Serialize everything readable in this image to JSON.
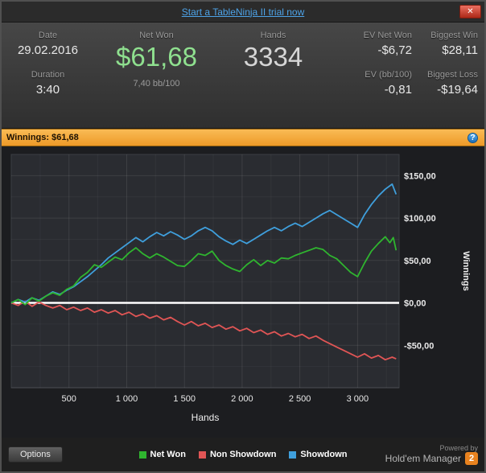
{
  "top_bar": {
    "link": "Start a TableNinja II trial now",
    "close_glyph": "✕"
  },
  "stats": {
    "date": {
      "label": "Date",
      "value": "29.02.2016"
    },
    "duration": {
      "label": "Duration",
      "value": "3:40"
    },
    "net_won": {
      "label": "Net Won",
      "value": "$61,68",
      "sub": "7,40 bb/100"
    },
    "hands": {
      "label": "Hands",
      "value": "3334"
    },
    "ev_net_won": {
      "label": "EV Net Won",
      "value": "-$6,72"
    },
    "ev_bb": {
      "label": "EV (bb/100)",
      "value": "-0,81"
    },
    "biggest_win": {
      "label": "Biggest Win",
      "value": "$28,11"
    },
    "biggest_loss": {
      "label": "Biggest Loss",
      "value": "-$19,64"
    }
  },
  "winnings_bar": {
    "label": "Winnings: $61,68",
    "help_glyph": "?"
  },
  "chart_data": {
    "type": "line",
    "xlabel": "Hands",
    "ylabel": "Winnings",
    "xlim": [
      0,
      3360
    ],
    "ylim": [
      -100,
      175
    ],
    "x_grid_step": 250,
    "y_grid_step": 25,
    "zero_line": 0,
    "x_ticks": [
      {
        "v": 500,
        "label": "500"
      },
      {
        "v": 1000,
        "label": "1 000"
      },
      {
        "v": 1500,
        "label": "1 500"
      },
      {
        "v": 2000,
        "label": "2 000"
      },
      {
        "v": 2500,
        "label": "2 500"
      },
      {
        "v": 3000,
        "label": "3 000"
      }
    ],
    "y_ticks": [
      {
        "v": 150,
        "label": "$150,00"
      },
      {
        "v": 100,
        "label": "$100,00"
      },
      {
        "v": 50,
        "label": "$50,00"
      },
      {
        "v": 0,
        "label": "$0,00"
      },
      {
        "v": -50,
        "label": "-$50,00"
      }
    ],
    "series": [
      {
        "name": "Non Showdown",
        "color": "#e05555",
        "points": [
          [
            0,
            0
          ],
          [
            60,
            -3
          ],
          [
            120,
            2
          ],
          [
            180,
            -4
          ],
          [
            240,
            1
          ],
          [
            300,
            -3
          ],
          [
            360,
            -6
          ],
          [
            420,
            -3
          ],
          [
            480,
            -8
          ],
          [
            540,
            -5
          ],
          [
            600,
            -9
          ],
          [
            660,
            -6
          ],
          [
            720,
            -11
          ],
          [
            780,
            -8
          ],
          [
            840,
            -12
          ],
          [
            900,
            -9
          ],
          [
            960,
            -14
          ],
          [
            1020,
            -11
          ],
          [
            1080,
            -16
          ],
          [
            1140,
            -13
          ],
          [
            1200,
            -18
          ],
          [
            1260,
            -15
          ],
          [
            1320,
            -20
          ],
          [
            1380,
            -17
          ],
          [
            1440,
            -22
          ],
          [
            1500,
            -26
          ],
          [
            1560,
            -22
          ],
          [
            1620,
            -27
          ],
          [
            1680,
            -24
          ],
          [
            1740,
            -29
          ],
          [
            1800,
            -26
          ],
          [
            1860,
            -31
          ],
          [
            1920,
            -28
          ],
          [
            1980,
            -33
          ],
          [
            2040,
            -30
          ],
          [
            2100,
            -35
          ],
          [
            2160,
            -32
          ],
          [
            2220,
            -37
          ],
          [
            2280,
            -34
          ],
          [
            2340,
            -39
          ],
          [
            2400,
            -36
          ],
          [
            2460,
            -40
          ],
          [
            2520,
            -37
          ],
          [
            2580,
            -42
          ],
          [
            2640,
            -39
          ],
          [
            2700,
            -44
          ],
          [
            2760,
            -48
          ],
          [
            2820,
            -52
          ],
          [
            2880,
            -56
          ],
          [
            2940,
            -60
          ],
          [
            3000,
            -64
          ],
          [
            3060,
            -60
          ],
          [
            3120,
            -65
          ],
          [
            3180,
            -62
          ],
          [
            3240,
            -67
          ],
          [
            3300,
            -64
          ],
          [
            3334,
            -66
          ]
        ]
      },
      {
        "name": "Showdown",
        "color": "#3f9fdc",
        "points": [
          [
            0,
            0
          ],
          [
            60,
            4
          ],
          [
            120,
            1
          ],
          [
            180,
            6
          ],
          [
            240,
            3
          ],
          [
            300,
            8
          ],
          [
            360,
            13
          ],
          [
            420,
            10
          ],
          [
            480,
            15
          ],
          [
            540,
            19
          ],
          [
            600,
            25
          ],
          [
            660,
            31
          ],
          [
            720,
            38
          ],
          [
            780,
            45
          ],
          [
            840,
            53
          ],
          [
            900,
            59
          ],
          [
            960,
            65
          ],
          [
            1020,
            71
          ],
          [
            1080,
            77
          ],
          [
            1140,
            72
          ],
          [
            1200,
            78
          ],
          [
            1260,
            83
          ],
          [
            1320,
            79
          ],
          [
            1380,
            84
          ],
          [
            1440,
            80
          ],
          [
            1500,
            75
          ],
          [
            1560,
            79
          ],
          [
            1620,
            85
          ],
          [
            1680,
            89
          ],
          [
            1740,
            85
          ],
          [
            1800,
            78
          ],
          [
            1860,
            73
          ],
          [
            1920,
            69
          ],
          [
            1980,
            74
          ],
          [
            2040,
            70
          ],
          [
            2100,
            75
          ],
          [
            2160,
            80
          ],
          [
            2220,
            85
          ],
          [
            2280,
            89
          ],
          [
            2340,
            85
          ],
          [
            2400,
            90
          ],
          [
            2460,
            94
          ],
          [
            2520,
            90
          ],
          [
            2580,
            95
          ],
          [
            2640,
            100
          ],
          [
            2700,
            105
          ],
          [
            2760,
            109
          ],
          [
            2820,
            104
          ],
          [
            2880,
            99
          ],
          [
            2940,
            94
          ],
          [
            3000,
            89
          ],
          [
            3060,
            104
          ],
          [
            3120,
            116
          ],
          [
            3180,
            126
          ],
          [
            3240,
            134
          ],
          [
            3300,
            140
          ],
          [
            3334,
            128
          ]
        ]
      },
      {
        "name": "Net Won",
        "color": "#2fb52f",
        "points": [
          [
            0,
            0
          ],
          [
            60,
            4
          ],
          [
            120,
            -2
          ],
          [
            180,
            6
          ],
          [
            240,
            2
          ],
          [
            300,
            8
          ],
          [
            360,
            12
          ],
          [
            420,
            9
          ],
          [
            480,
            16
          ],
          [
            540,
            20
          ],
          [
            600,
            30
          ],
          [
            660,
            36
          ],
          [
            720,
            45
          ],
          [
            780,
            42
          ],
          [
            840,
            48
          ],
          [
            900,
            54
          ],
          [
            960,
            51
          ],
          [
            1020,
            59
          ],
          [
            1080,
            65
          ],
          [
            1140,
            58
          ],
          [
            1200,
            53
          ],
          [
            1260,
            58
          ],
          [
            1320,
            54
          ],
          [
            1380,
            49
          ],
          [
            1440,
            44
          ],
          [
            1500,
            43
          ],
          [
            1560,
            50
          ],
          [
            1620,
            58
          ],
          [
            1680,
            56
          ],
          [
            1740,
            61
          ],
          [
            1800,
            50
          ],
          [
            1860,
            44
          ],
          [
            1920,
            40
          ],
          [
            1980,
            37
          ],
          [
            2040,
            45
          ],
          [
            2100,
            51
          ],
          [
            2160,
            44
          ],
          [
            2220,
            50
          ],
          [
            2280,
            47
          ],
          [
            2340,
            53
          ],
          [
            2400,
            52
          ],
          [
            2460,
            56
          ],
          [
            2520,
            59
          ],
          [
            2580,
            62
          ],
          [
            2640,
            65
          ],
          [
            2700,
            63
          ],
          [
            2760,
            56
          ],
          [
            2820,
            52
          ],
          [
            2880,
            44
          ],
          [
            2940,
            36
          ],
          [
            3000,
            31
          ],
          [
            3060,
            47
          ],
          [
            3120,
            61
          ],
          [
            3180,
            70
          ],
          [
            3240,
            78
          ],
          [
            3280,
            71
          ],
          [
            3310,
            77
          ],
          [
            3334,
            62
          ]
        ]
      }
    ]
  },
  "bottom_bar": {
    "options_label": "Options",
    "legend": [
      {
        "label": "Net Won",
        "color": "#2fb52f"
      },
      {
        "label": "Non Showdown",
        "color": "#e05555"
      },
      {
        "label": "Showdown",
        "color": "#3f9fdc"
      }
    ],
    "powered_by": "Powered by",
    "brand": "Hold'em Manager",
    "brand_badge": "2"
  }
}
